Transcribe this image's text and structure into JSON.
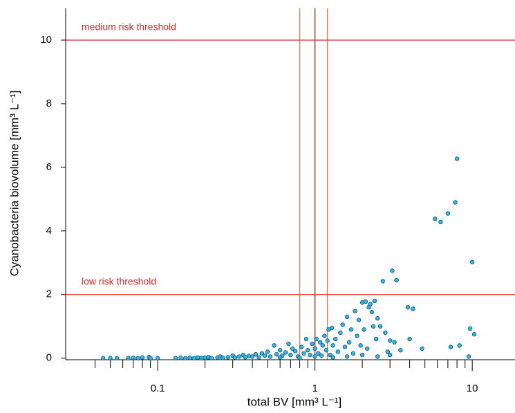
{
  "chart_data": {
    "type": "scatter",
    "xlabel": "total BV [mm³ L⁻¹]",
    "ylabel": "Cyanobacteria biovolume [mm³ L⁻¹]",
    "xscale": "log",
    "xlim": [
      0.026,
      18.7
    ],
    "ylim": [
      -0.05,
      11
    ],
    "xticks": [
      0.1,
      1,
      10
    ],
    "xminor_ticks": [
      0.04,
      0.05,
      0.06,
      0.07,
      0.08,
      0.09,
      0.2,
      0.3,
      0.4,
      0.5,
      0.6,
      0.7,
      0.8,
      0.9,
      2,
      3,
      4,
      5,
      6,
      7,
      8,
      9
    ],
    "yticks": [
      0,
      2,
      4,
      6,
      8,
      10
    ],
    "hlines": [
      {
        "value": 2,
        "label": "low risk threshold",
        "color": "#e3262a"
      },
      {
        "value": 10,
        "label": "medium risk threshold",
        "color": "#e3262a"
      }
    ],
    "vlines": [
      {
        "value": 0.8,
        "color": "#c98a64"
      },
      {
        "value": 1,
        "color": "#8a4b2c"
      },
      {
        "value": 1.2,
        "color": "#c98a64"
      }
    ],
    "series": [
      {
        "color": "#2bb8ea",
        "edgecolor": "#1b4d6e",
        "x": [
          0.045,
          0.05,
          0.055,
          0.065,
          0.07,
          0.075,
          0.08,
          0.088,
          0.09,
          0.1,
          0.13,
          0.14,
          0.15,
          0.16,
          0.17,
          0.18,
          0.19,
          0.2,
          0.21,
          0.22,
          0.24,
          0.25,
          0.26,
          0.28,
          0.3,
          0.31,
          0.33,
          0.35,
          0.36,
          0.38,
          0.4,
          0.42,
          0.44,
          0.46,
          0.48,
          0.5,
          0.52,
          0.55,
          0.57,
          0.6,
          0.62,
          0.65,
          0.68,
          0.7,
          0.72,
          0.75,
          0.78,
          0.82,
          0.85,
          0.88,
          0.9,
          0.93,
          0.96,
          1.0,
          1.02,
          1.05,
          1.08,
          1.1,
          1.12,
          1.15,
          1.18,
          1.2,
          1.22,
          1.25,
          1.28,
          1.3,
          1.35,
          1.4,
          1.45,
          1.5,
          1.55,
          1.6,
          1.65,
          1.7,
          1.75,
          1.8,
          1.85,
          1.9,
          1.95,
          2.0,
          2.05,
          2.1,
          2.15,
          2.2,
          2.25,
          2.3,
          2.35,
          2.4,
          2.45,
          2.5,
          2.6,
          2.7,
          2.8,
          2.9,
          3.0,
          3.1,
          3.2,
          3.3,
          3.5,
          3.9,
          4.0,
          4.2,
          4.8,
          5.8,
          6.3,
          7.0,
          7.3,
          7.8,
          8.0,
          8.3,
          9.5,
          9.7,
          10.0,
          10.3,
          0.6,
          0.8,
          1.0,
          1.3,
          1.6,
          2.0,
          2.5,
          3.0
        ],
        "values": [
          0,
          0,
          0,
          0,
          0.01,
          0,
          0.02,
          0.03,
          0,
          0,
          0,
          0.01,
          0,
          0.01,
          0,
          0.02,
          0,
          0.01,
          0.03,
          0,
          0.02,
          0.05,
          0.01,
          0.03,
          0.08,
          0.02,
          0.05,
          0.1,
          0.03,
          0.07,
          0.05,
          0.12,
          0.02,
          0.15,
          0.08,
          0.2,
          0.05,
          0.4,
          0.12,
          0.25,
          0.08,
          0.18,
          0.45,
          0.1,
          0.3,
          0.22,
          0.05,
          0.35,
          0.15,
          0.6,
          0.25,
          0.1,
          0.45,
          0.3,
          0.6,
          0.15,
          0.5,
          0.08,
          0.4,
          0.7,
          0.25,
          0.55,
          0.9,
          0.1,
          0.95,
          0.4,
          0.6,
          0.2,
          0.8,
          1.05,
          0.35,
          1.3,
          0.5,
          0.9,
          0.15,
          1.48,
          0.7,
          1.2,
          0.4,
          1.75,
          0.9,
          1.78,
          0.3,
          1.6,
          1.7,
          1.45,
          1.0,
          1.8,
          0.6,
          1.25,
          1.0,
          2.42,
          0.8,
          0.2,
          0.55,
          2.75,
          0.5,
          2.45,
          0.25,
          1.6,
          0.6,
          1.55,
          0.3,
          4.38,
          4.28,
          4.55,
          0.35,
          4.9,
          6.27,
          0.4,
          0.05,
          0.93,
          3.02,
          0.75,
          0.02,
          0.01,
          0.05,
          0.02,
          0.05,
          0.1,
          0.05,
          0.1
        ]
      }
    ]
  }
}
